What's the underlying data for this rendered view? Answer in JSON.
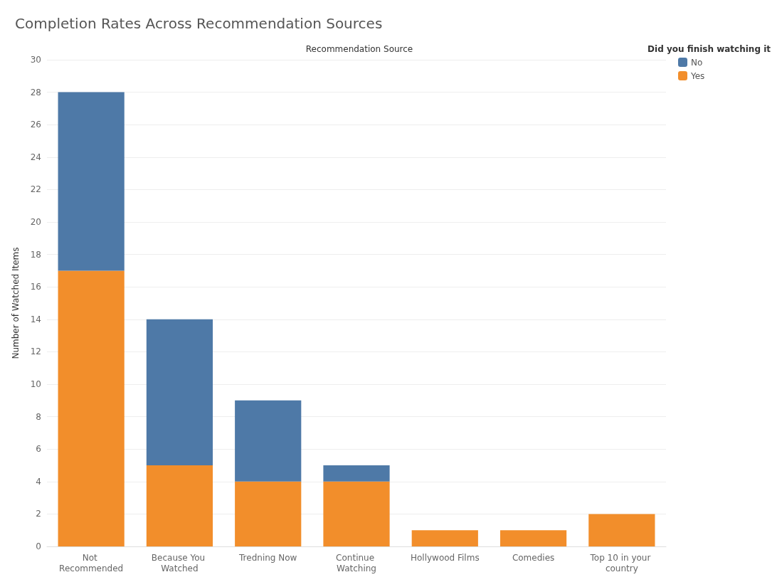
{
  "chart_data": {
    "type": "bar",
    "title": "Completion Rates Across Recommendation Sources",
    "xlabel": "Recommendation Source",
    "ylabel": "Number of Watched Items",
    "legend_title": "Did you finish watching it",
    "categories": [
      "Not Recommended",
      "Because You Watched",
      "Tredning Now",
      "Continue Watching",
      "Hollywood Films",
      "Comedies",
      "Top 10 in your country"
    ],
    "series": [
      {
        "name": "Yes",
        "color": "#f28e2b",
        "values": [
          17,
          5,
          4,
          4,
          1,
          1,
          2
        ]
      },
      {
        "name": "No",
        "color": "#4e79a7",
        "values": [
          11,
          9,
          5,
          1,
          null,
          null,
          null
        ]
      }
    ],
    "stacked": true,
    "ylim": [
      0,
      30
    ],
    "yticks": [
      0,
      2,
      4,
      6,
      8,
      10,
      12,
      14,
      16,
      18,
      20,
      22,
      24,
      26,
      28,
      30
    ],
    "grid": "y",
    "legend": "top right"
  }
}
